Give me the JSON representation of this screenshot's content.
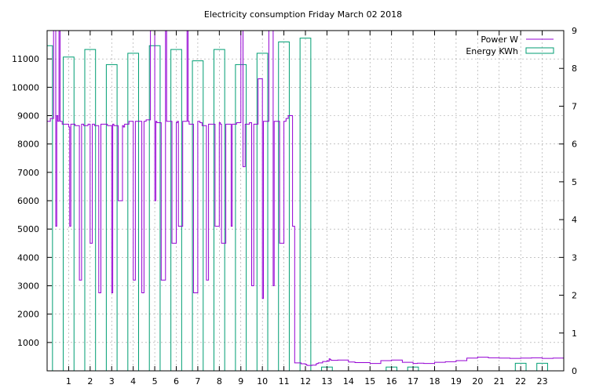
{
  "chart_data": {
    "type": "bar+line",
    "title": "Electricity consumption Friday March 02 2018",
    "xlabel": "",
    "ylabel": "",
    "y2label": "",
    "x_ticks": [
      "1",
      "2",
      "3",
      "4",
      "5",
      "6",
      "7",
      "8",
      "9",
      "10",
      "11",
      "12",
      "13",
      "14",
      "15",
      "16",
      "17",
      "18",
      "19",
      "20",
      "21",
      "22",
      "23"
    ],
    "xlim": [
      0,
      24
    ],
    "ylim": [
      0,
      12000
    ],
    "y_ticks": [
      1000,
      2000,
      3000,
      4000,
      5000,
      6000,
      7000,
      8000,
      9000,
      10000,
      11000
    ],
    "y2lim": [
      0,
      9
    ],
    "y2_ticks": [
      0,
      1,
      2,
      3,
      4,
      5,
      6,
      7,
      8,
      9
    ],
    "grid": true,
    "legend_position": "top-right",
    "series": [
      {
        "name": "Energy KWh",
        "type": "bar",
        "axis": "y2",
        "color": "#009e73",
        "hours": [
          0,
          1,
          2,
          3,
          4,
          5,
          6,
          7,
          8,
          9,
          10,
          11,
          12,
          13,
          14,
          15,
          16,
          17,
          18,
          19,
          20,
          21,
          22,
          23
        ],
        "values": [
          8.6,
          8.3,
          8.5,
          8.1,
          8.4,
          8.6,
          8.5,
          8.2,
          8.5,
          8.1,
          8.4,
          8.7,
          8.8,
          0.1,
          0.0,
          0.0,
          0.1,
          0.1,
          0.0,
          0.0,
          0.0,
          0.0,
          0.2,
          0.2
        ]
      },
      {
        "name": "Power W",
        "type": "line",
        "axis": "y",
        "color": "#9400d3",
        "x": [
          0,
          0.15,
          0.3,
          0.4,
          0.45,
          0.5,
          0.55,
          0.6,
          0.7,
          0.8,
          1.0,
          1.05,
          1.1,
          1.3,
          1.5,
          1.6,
          1.7,
          1.9,
          2.0,
          2.1,
          2.2,
          2.4,
          2.5,
          2.6,
          2.8,
          3.0,
          3.05,
          3.1,
          3.3,
          3.5,
          3.55,
          3.6,
          3.8,
          4.0,
          4.1,
          4.2,
          4.4,
          4.5,
          4.6,
          4.8,
          5.0,
          5.05,
          5.1,
          5.3,
          5.5,
          5.55,
          5.6,
          5.8,
          6.0,
          6.05,
          6.1,
          6.3,
          6.5,
          6.55,
          6.6,
          6.8,
          7.0,
          7.1,
          7.2,
          7.4,
          7.5,
          7.6,
          7.8,
          8.0,
          8.05,
          8.1,
          8.3,
          8.5,
          8.55,
          8.6,
          8.8,
          9.0,
          9.1,
          9.2,
          9.4,
          9.5,
          9.6,
          9.8,
          10.0,
          10.05,
          10.1,
          10.3,
          10.5,
          10.55,
          10.6,
          10.8,
          11.0,
          11.1,
          11.2,
          11.4,
          11.5,
          11.6,
          11.8,
          12.0,
          12.05,
          12.1,
          12.3,
          12.5,
          12.55,
          12.6,
          12.8,
          13.0,
          13.05,
          13.1,
          13.15,
          13.2,
          13.5,
          14.0,
          14.3,
          15.0,
          15.5,
          16.0,
          16.5,
          17.0,
          17.2,
          17.5,
          18.0,
          18.5,
          19.0,
          19.5,
          20.0,
          20.5,
          21.0,
          21.5,
          22.0,
          22.5,
          23.0,
          23.5,
          24.0
        ],
        "values": [
          8800,
          8900,
          12000,
          5100,
          9000,
          8800,
          12000,
          8800,
          8700,
          8700,
          8600,
          5100,
          8700,
          8650,
          3200,
          8700,
          8650,
          8700,
          4500,
          8700,
          8650,
          2750,
          8700,
          8700,
          8650,
          2750,
          8700,
          8650,
          6000,
          8650,
          8600,
          8700,
          8800,
          3200,
          8800,
          8800,
          2750,
          8800,
          8850,
          12000,
          6000,
          8800,
          8750,
          3200,
          12000,
          8800,
          8800,
          4500,
          8750,
          8800,
          5100,
          8800,
          12000,
          8800,
          8700,
          2750,
          8800,
          8750,
          8650,
          3200,
          8700,
          8700,
          5100,
          8750,
          8700,
          4500,
          8700,
          8700,
          5100,
          8700,
          8750,
          12000,
          7200,
          8700,
          8750,
          3000,
          8700,
          10300,
          2550,
          8800,
          8800,
          12000,
          3000,
          8800,
          8800,
          4500,
          8800,
          8900,
          9000,
          5100,
          280,
          280,
          250,
          230,
          200,
          190,
          200,
          250,
          260,
          280,
          330,
          350,
          340,
          420,
          390,
          370,
          380,
          310,
          290,
          260,
          360,
          380,
          300,
          260,
          270,
          260,
          300,
          320,
          360,
          450,
          480,
          460,
          450,
          440,
          450,
          460,
          440,
          450,
          440
        ]
      }
    ]
  }
}
